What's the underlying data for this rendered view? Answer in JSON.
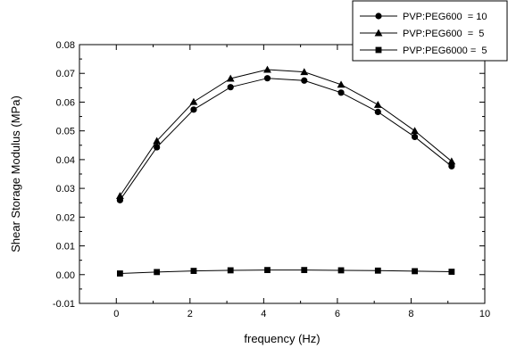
{
  "chart_data": {
    "type": "line",
    "xlabel": "frequency (Hz)",
    "ylabel": "Shear Storage Modulus (MPa)",
    "xlim": [
      -1,
      10
    ],
    "ylim": [
      -0.01,
      0.08
    ],
    "xticks": [
      0,
      2,
      4,
      6,
      8,
      10
    ],
    "yticks": [
      -0.01,
      0.0,
      0.01,
      0.02,
      0.03,
      0.04,
      0.05,
      0.06,
      0.07,
      0.08
    ],
    "xtick_labels": [
      "0",
      "2",
      "4",
      "6",
      "8",
      "10"
    ],
    "ytick_labels": [
      "-0.01",
      "0.00",
      "0.01",
      "0.02",
      "0.03",
      "0.04",
      "0.05",
      "0.06",
      "0.07",
      "0.08"
    ],
    "grid": false,
    "legend_position": "top-right, outside plot area",
    "series": [
      {
        "name": "PVP:PEG600  = 10",
        "marker": "circle",
        "color": "#000000",
        "x": [
          0.1,
          1.1,
          2.1,
          3.1,
          4.1,
          5.1,
          6.1,
          7.1,
          8.1,
          9.1
        ],
        "y": [
          0.0259,
          0.0443,
          0.0574,
          0.0652,
          0.0683,
          0.0675,
          0.0633,
          0.0566,
          0.0479,
          0.0377
        ]
      },
      {
        "name": "PVP:PEG600  =  5",
        "marker": "triangle",
        "color": "#000000",
        "x": [
          0.1,
          1.1,
          2.1,
          3.1,
          4.1,
          5.1,
          6.1,
          7.1,
          8.1,
          9.1
        ],
        "y": [
          0.0274,
          0.0465,
          0.0601,
          0.0682,
          0.0713,
          0.0705,
          0.0661,
          0.0591,
          0.05,
          0.0394
        ]
      },
      {
        "name": "PVP:PEG6000 =  5",
        "marker": "square",
        "color": "#000000",
        "x": [
          0.1,
          1.1,
          2.1,
          3.1,
          4.1,
          5.1,
          6.1,
          7.1,
          8.1,
          9.1
        ],
        "y": [
          0.0004,
          0.0009,
          0.0013,
          0.0015,
          0.0016,
          0.0016,
          0.0015,
          0.0014,
          0.0012,
          0.001
        ]
      }
    ]
  }
}
